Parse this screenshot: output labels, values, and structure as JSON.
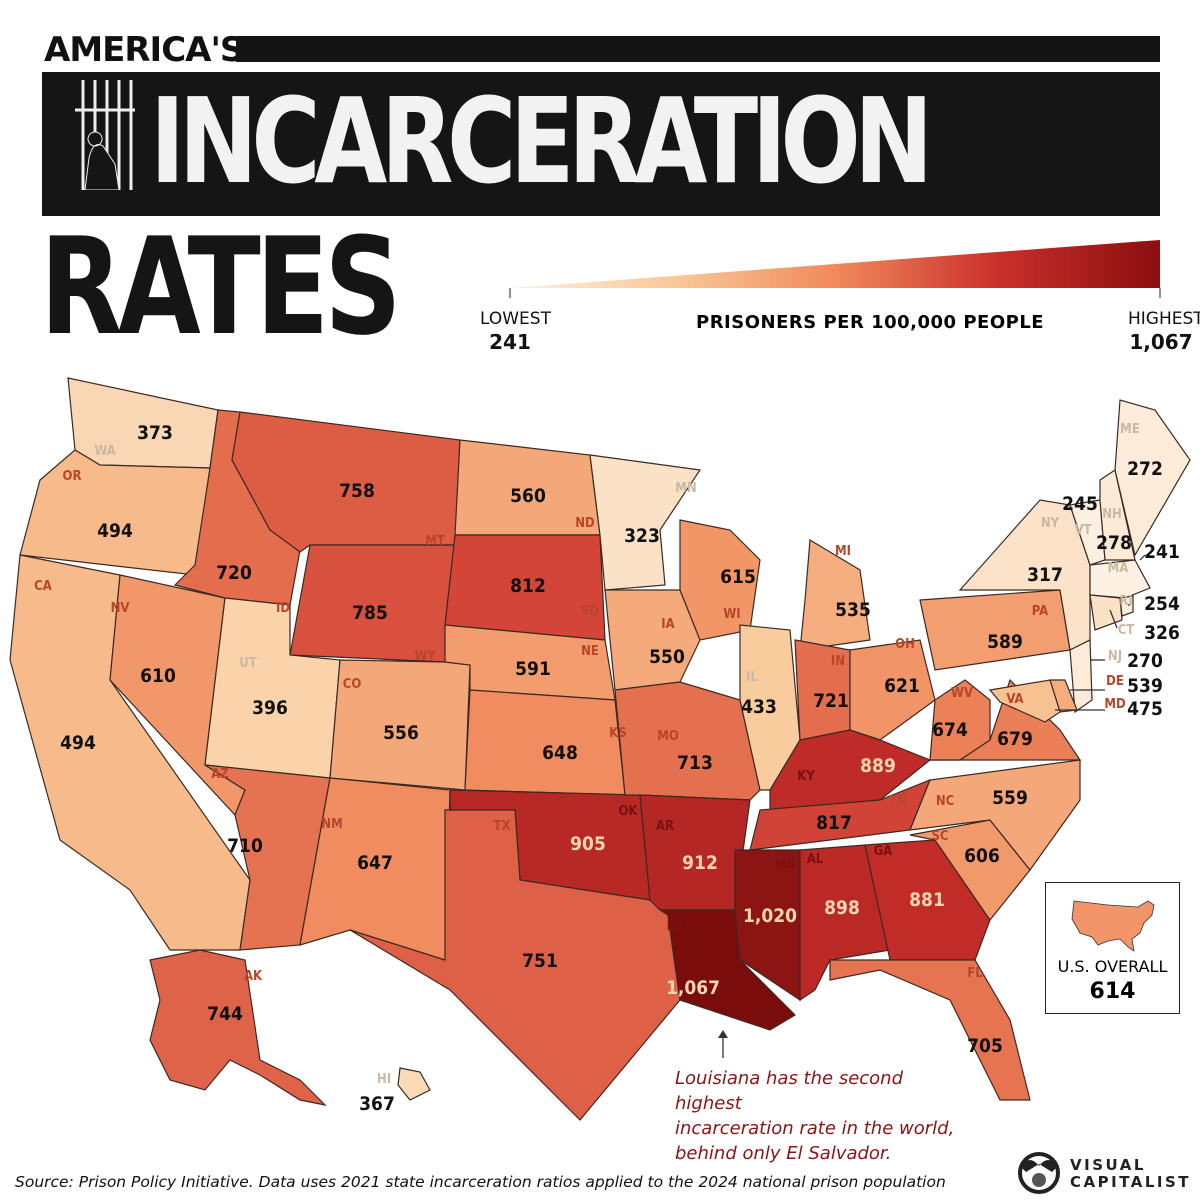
{
  "title": {
    "line1": "AMERICA'S",
    "line2": "INCARCERATION",
    "line3": "RATES"
  },
  "legend": {
    "title": "PRISONERS PER 100,000 PEOPLE",
    "low_label": "LOWEST",
    "low_value": "241",
    "high_label": "HIGHEST",
    "high_value": "1,067",
    "min": 241,
    "max": 1067,
    "colors": [
      "#fcf1e3",
      "#f9c999",
      "#f08a5d",
      "#c9302c",
      "#7a0c0c"
    ]
  },
  "states": [
    {
      "abbr": "WA",
      "value": 373
    },
    {
      "abbr": "OR",
      "value": 494
    },
    {
      "abbr": "CA",
      "value": 494
    },
    {
      "abbr": "NV",
      "value": 610
    },
    {
      "abbr": "ID",
      "value": 720
    },
    {
      "abbr": "MT",
      "value": 758
    },
    {
      "abbr": "WY",
      "value": 785
    },
    {
      "abbr": "UT",
      "value": 396
    },
    {
      "abbr": "AZ",
      "value": 710
    },
    {
      "abbr": "CO",
      "value": 556
    },
    {
      "abbr": "NM",
      "value": 647
    },
    {
      "abbr": "ND",
      "value": 560
    },
    {
      "abbr": "SD",
      "value": 812
    },
    {
      "abbr": "NE",
      "value": 591
    },
    {
      "abbr": "KS",
      "value": 648
    },
    {
      "abbr": "OK",
      "value": 905
    },
    {
      "abbr": "TX",
      "value": 751
    },
    {
      "abbr": "MN",
      "value": 323
    },
    {
      "abbr": "IA",
      "value": 550
    },
    {
      "abbr": "MO",
      "value": 713
    },
    {
      "abbr": "AR",
      "value": 912
    },
    {
      "abbr": "LA",
      "value": 1067,
      "label": "1,067"
    },
    {
      "abbr": "WI",
      "value": 615
    },
    {
      "abbr": "IL",
      "value": 433
    },
    {
      "abbr": "MI",
      "value": 535
    },
    {
      "abbr": "IN",
      "value": 721
    },
    {
      "abbr": "OH",
      "value": 621
    },
    {
      "abbr": "KY",
      "value": 889
    },
    {
      "abbr": "TN",
      "value": 817
    },
    {
      "abbr": "MS",
      "value": 1020,
      "label": "1,020"
    },
    {
      "abbr": "AL",
      "value": 898
    },
    {
      "abbr": "GA",
      "value": 881
    },
    {
      "abbr": "FL",
      "value": 705
    },
    {
      "abbr": "SC",
      "value": 606
    },
    {
      "abbr": "NC",
      "value": 559
    },
    {
      "abbr": "VA",
      "value": 679
    },
    {
      "abbr": "WV",
      "value": 674
    },
    {
      "abbr": "PA",
      "value": 589
    },
    {
      "abbr": "NY",
      "value": 317
    },
    {
      "abbr": "VT",
      "value": 245
    },
    {
      "abbr": "NH",
      "value": 278
    },
    {
      "abbr": "ME",
      "value": 272
    },
    {
      "abbr": "MA",
      "value": 241
    },
    {
      "abbr": "RI",
      "value": 254
    },
    {
      "abbr": "CT",
      "value": 326
    },
    {
      "abbr": "NJ",
      "value": 270
    },
    {
      "abbr": "DE",
      "value": 539
    },
    {
      "abbr": "MD",
      "value": 475
    },
    {
      "abbr": "AK",
      "value": 744
    },
    {
      "abbr": "HI",
      "value": 367
    }
  ],
  "overall": {
    "label": "U.S. OVERALL",
    "value": "614",
    "rate": 614
  },
  "annotation": {
    "lines": [
      "Louisiana has the second highest",
      "incarceration rate in the world,",
      "behind only El Salvador."
    ]
  },
  "source": "Source: Prison Policy Initiative. Data uses 2021 state incarceration ratios applied to the 2024 national prison population",
  "brand": {
    "line1": "VISUAL",
    "line2": "CAPITALIST"
  }
}
